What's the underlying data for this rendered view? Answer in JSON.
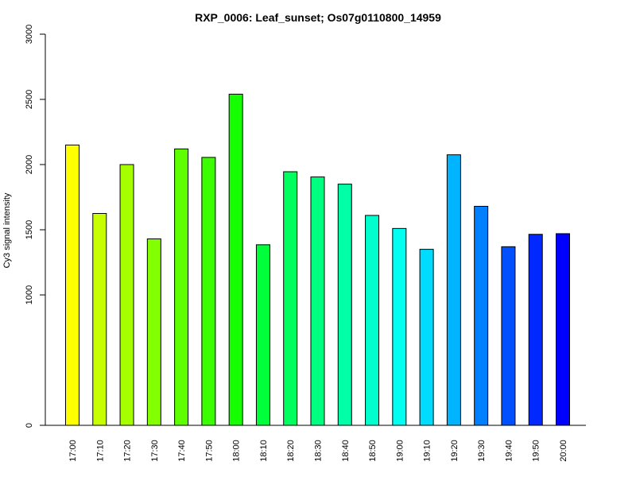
{
  "chart_data": {
    "type": "bar",
    "title": "RXP_0006: Leaf_sunset; Os07g0110800_14959",
    "xlabel": "",
    "ylabel": "Cy3 signal intensity",
    "ylim": [
      0,
      3000
    ],
    "y_ticks": [
      0,
      1000,
      1500,
      2000,
      2500,
      3000
    ],
    "y_tick_labels": [
      "0",
      "1000",
      "1500",
      "2000",
      "2500",
      "3000"
    ],
    "y_axis_break_note": "axis has uneven spacing: 0 to 1000 compressed",
    "categories": [
      "17:00",
      "17:10",
      "17:20",
      "17:30",
      "17:40",
      "17:50",
      "18:00",
      "18:10",
      "18:20",
      "18:30",
      "18:40",
      "18:50",
      "19:00",
      "19:10",
      "19:20",
      "19:30",
      "19:40",
      "19:50",
      "20:00"
    ],
    "values": [
      2150,
      1625,
      2000,
      1430,
      2120,
      2055,
      2540,
      1385,
      1945,
      1905,
      1850,
      1610,
      1510,
      1350,
      2075,
      1680,
      1370,
      1465,
      1470
    ],
    "colors": [
      "#FFFF00",
      "#C8FF00",
      "#A6FF00",
      "#82FF00",
      "#5EFF00",
      "#3BFF00",
      "#16FF00",
      "#00FF3A",
      "#00FF5E",
      "#00FF80",
      "#00FFA6",
      "#00FFCC",
      "#00FFF0",
      "#00DCFF",
      "#00B4FF",
      "#0080FF",
      "#0050FF",
      "#0028FF",
      "#0000FF"
    ],
    "grid": false,
    "legend": "none"
  }
}
